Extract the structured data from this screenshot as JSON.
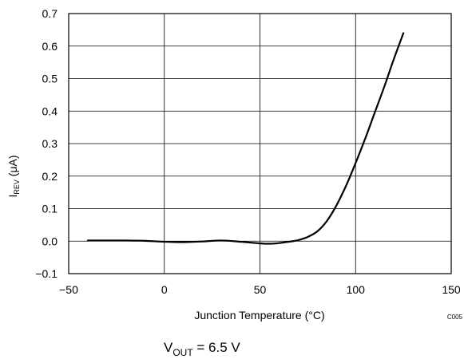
{
  "chart_data": {
    "type": "line",
    "xlabel": "Junction Temperature (°C)",
    "ylabel": {
      "main": "I",
      "sub": "REV",
      "unit": " (μA)"
    },
    "xlim": [
      -50,
      150
    ],
    "ylim": [
      -0.1,
      0.7
    ],
    "x_ticks": [
      -50,
      0,
      50,
      100,
      150
    ],
    "y_ticks": [
      -0.1,
      0.0,
      0.1,
      0.2,
      0.3,
      0.4,
      0.5,
      0.6,
      0.7
    ],
    "x_tick_labels": [
      "−50",
      "0",
      "50",
      "100",
      "150"
    ],
    "y_tick_labels": [
      "−0.1",
      "0.0",
      "0.1",
      "0.2",
      "0.3",
      "0.4",
      "0.5",
      "0.6",
      "0.7"
    ],
    "grid": true,
    "series": [
      {
        "x": [
          -40,
          -30,
          -20,
          -10,
          0,
          10,
          20,
          30,
          40,
          50,
          55,
          60,
          65,
          70,
          75,
          80,
          85,
          90,
          95,
          100,
          105,
          110,
          115,
          120,
          125
        ],
        "y": [
          0.002,
          0.002,
          0.002,
          0.001,
          -0.002,
          -0.003,
          -0.001,
          0.002,
          -0.002,
          -0.007,
          -0.008,
          -0.006,
          -0.002,
          0.003,
          0.013,
          0.03,
          0.062,
          0.11,
          0.17,
          0.24,
          0.315,
          0.395,
          0.475,
          0.56,
          0.64
        ]
      }
    ],
    "code": "C005",
    "condition": {
      "main": "V",
      "sub": "OUT",
      "rest": " = 6.5 V"
    }
  }
}
